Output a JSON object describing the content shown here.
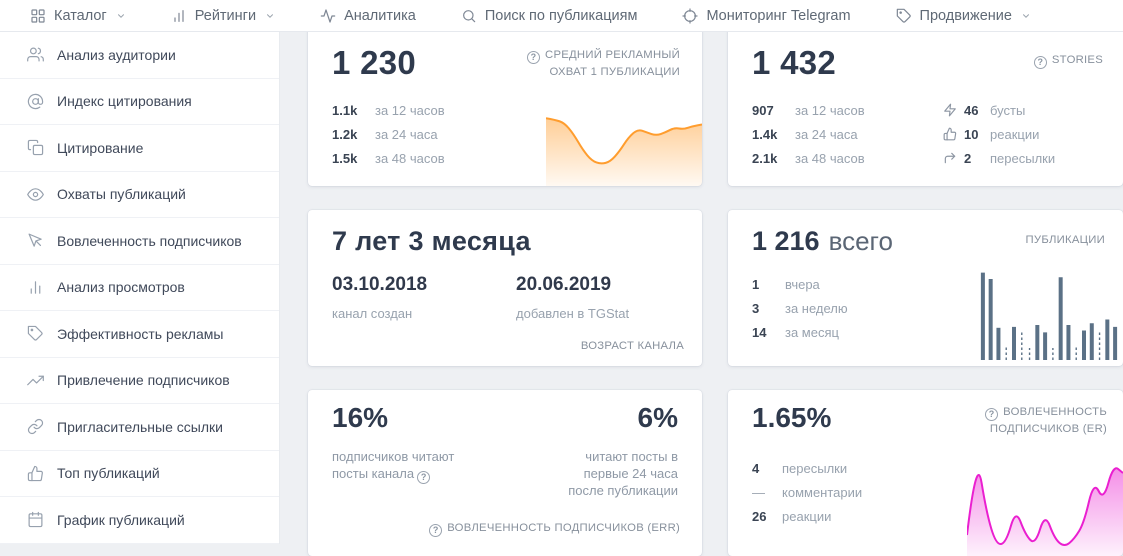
{
  "icons": {
    "help": "?"
  },
  "navbar": {
    "items": [
      {
        "label": "Каталог"
      },
      {
        "label": "Рейтинги"
      },
      {
        "label": "Аналитика"
      },
      {
        "label": "Поиск по публикациям"
      },
      {
        "label": "Мониторинг Telegram"
      },
      {
        "label": "Продвижение"
      }
    ]
  },
  "sidebar": {
    "items": [
      {
        "label": "Анализ аудитории"
      },
      {
        "label": "Индекс цитирования"
      },
      {
        "label": "Цитирование"
      },
      {
        "label": "Охваты публикаций"
      },
      {
        "label": "Вовлеченность подписчиков"
      },
      {
        "label": "Анализ просмотров"
      },
      {
        "label": "Эффективность рекламы"
      },
      {
        "label": "Привлечение подписчиков"
      },
      {
        "label": "Пригласительные ссылки"
      },
      {
        "label": "Топ публикаций"
      },
      {
        "label": "График публикаций"
      }
    ]
  },
  "cards": {
    "avg_reach": {
      "value": "1 230",
      "caption_line1": "СРЕДНИЙ РЕКЛАМНЫЙ",
      "caption_line2": "ОХВАТ 1 ПУБЛИКАЦИИ",
      "rows": [
        {
          "value": "1.1k",
          "label": "за 12 часов"
        },
        {
          "value": "1.2k",
          "label": "за 24 часа"
        },
        {
          "value": "1.5k",
          "label": "за 48 часов"
        }
      ]
    },
    "stories": {
      "value": "1 432",
      "caption": "STORIES",
      "rows": [
        {
          "value": "907",
          "label": "за 12 часов"
        },
        {
          "value": "1.4k",
          "label": "за 24 часа"
        },
        {
          "value": "2.1k",
          "label": "за 48 часов"
        }
      ],
      "stats": [
        {
          "value": "46",
          "label": "бусты"
        },
        {
          "value": "10",
          "label": "реакции"
        },
        {
          "value": "2",
          "label": "пересылки"
        }
      ]
    },
    "channel_age": {
      "value": "7 лет 3 месяца",
      "created_date": "03.10.2018",
      "created_label": "канал создан",
      "added_date": "20.06.2019",
      "added_label": "добавлен в TGStat",
      "caption": "ВОЗРАСТ КАНАЛА"
    },
    "publications": {
      "value": "1 216",
      "suffix": "всего",
      "caption": "ПУБЛИКАЦИИ",
      "rows": [
        {
          "value": "1",
          "label": "вчера"
        },
        {
          "value": "3",
          "label": "за неделю"
        },
        {
          "value": "14",
          "label": "за месяц"
        }
      ]
    },
    "err": {
      "value1": "16%",
      "label1": "подписчиков читают посты канала",
      "value2": "6%",
      "label2": "читают посты в первые 24 часа после публикации",
      "caption": "ВОВЛЕЧЕННОСТЬ ПОДПИСЧИКОВ (ERR)"
    },
    "er": {
      "value": "1.65%",
      "caption_line1": "ВОВЛЕЧЕННОСТЬ",
      "caption_line2": "ПОДПИСЧИКОВ (ER)",
      "rows": [
        {
          "value": "4",
          "label": "пересылки"
        },
        {
          "value": "—",
          "label": "комментарии"
        },
        {
          "value": "26",
          "label": "реакции"
        }
      ]
    }
  },
  "charts": {
    "reach_sparkline": {
      "type": "area",
      "stroke": "#ff9d2e",
      "values": [
        82,
        80,
        76,
        62,
        42,
        28,
        24,
        27,
        40,
        58,
        68,
        64,
        60,
        64,
        70,
        68,
        72,
        74
      ]
    },
    "publications_bars": {
      "type": "bar",
      "color": "#5b7186",
      "values": [
        95,
        88,
        35,
        14,
        36,
        30,
        13,
        38,
        30,
        13,
        90,
        38,
        14,
        32,
        40,
        30,
        44,
        36
      ],
      "solid": [
        true,
        true,
        true,
        false,
        true,
        false,
        false,
        true,
        true,
        false,
        true,
        true,
        false,
        true,
        true,
        false,
        true,
        true
      ]
    },
    "er_sparkline": {
      "type": "area",
      "stroke": "#ea1fd0",
      "values": [
        18,
        100,
        40,
        8,
        10,
        44,
        18,
        8,
        40,
        14,
        6,
        14,
        30,
        72,
        52,
        88,
        80
      ]
    }
  }
}
